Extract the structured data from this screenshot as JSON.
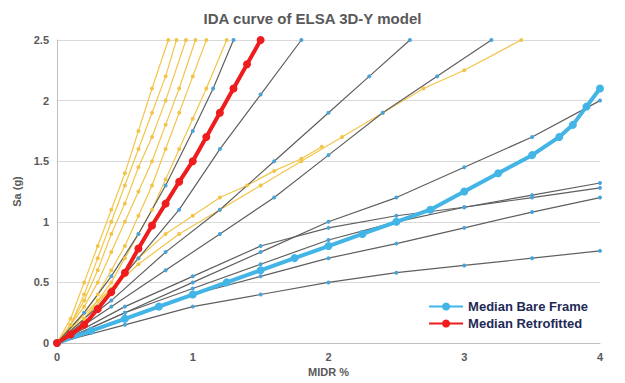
{
  "chart_data": {
    "type": "line",
    "title": "IDA curve of ELSA 3D-Y model",
    "x_label": "MIDR %",
    "y_label": "Sa (g)",
    "xlim": [
      0,
      4
    ],
    "xticks": [
      0,
      1,
      2,
      3,
      4
    ],
    "ylim": [
      0,
      2.5
    ],
    "yticks": [
      0,
      0.5,
      1,
      1.5,
      2,
      2.5
    ],
    "grid": true,
    "legend": "lower right",
    "series": [
      {
        "color": "#f2c54a",
        "marker": "circle",
        "line_style": "solid",
        "x": [
          0,
          0.1,
          0.2,
          0.3,
          0.4,
          0.5,
          0.6,
          0.7,
          0.82
        ],
        "values": [
          0,
          0.2,
          0.5,
          0.8,
          1.1,
          1.4,
          1.75,
          2.1,
          2.5
        ]
      },
      {
        "color": "#f2c54a",
        "marker": "circle",
        "line_style": "solid",
        "x": [
          0,
          0.1,
          0.2,
          0.3,
          0.4,
          0.5,
          0.6,
          0.7,
          0.8,
          0.88
        ],
        "values": [
          0,
          0.15,
          0.4,
          0.7,
          1.0,
          1.3,
          1.6,
          1.9,
          2.2,
          2.5
        ]
      },
      {
        "color": "#f2c54a",
        "marker": "circle",
        "line_style": "solid",
        "x": [
          0,
          0.1,
          0.2,
          0.3,
          0.4,
          0.5,
          0.6,
          0.7,
          0.8,
          0.95
        ],
        "values": [
          0,
          0.15,
          0.35,
          0.6,
          0.9,
          1.15,
          1.45,
          1.7,
          2.0,
          2.5
        ]
      },
      {
        "color": "#f2c54a",
        "marker": "circle",
        "line_style": "solid",
        "x": [
          0,
          0.2,
          0.3,
          0.4,
          0.5,
          0.6,
          0.7,
          0.8,
          0.9,
          1.02
        ],
        "values": [
          0,
          0.3,
          0.5,
          0.75,
          1.0,
          1.25,
          1.5,
          1.8,
          2.1,
          2.5
        ]
      },
      {
        "color": "#f2c54a",
        "marker": "circle",
        "line_style": "solid",
        "x": [
          0,
          0.2,
          0.3,
          0.4,
          0.5,
          0.6,
          0.7,
          0.8,
          0.9,
          1.0,
          1.1
        ],
        "values": [
          0,
          0.25,
          0.4,
          0.6,
          0.8,
          1.05,
          1.3,
          1.6,
          1.9,
          2.2,
          2.5
        ]
      },
      {
        "color": "#f2c54a",
        "marker": "circle",
        "line_style": "solid",
        "x": [
          0,
          0.2,
          0.4,
          0.5,
          0.6,
          0.7,
          0.8,
          0.9,
          1.0,
          1.1,
          1.25
        ],
        "values": [
          0,
          0.2,
          0.5,
          0.7,
          0.9,
          1.1,
          1.35,
          1.6,
          1.85,
          2.1,
          2.5
        ]
      },
      {
        "color": "#f2c54a",
        "marker": "circle",
        "line_style": "solid",
        "x": [
          0,
          0.2,
          0.4,
          0.6,
          0.8,
          1.0,
          1.2,
          1.4,
          1.6,
          1.8,
          1.95
        ],
        "values": [
          0,
          0.2,
          0.45,
          0.7,
          0.9,
          1.05,
          1.2,
          1.3,
          1.42,
          1.52,
          1.62
        ]
      },
      {
        "color": "#f2c54a",
        "marker": "circle",
        "line_style": "solid",
        "x": [
          0,
          0.3,
          0.6,
          0.9,
          1.2,
          1.5,
          1.8,
          2.1,
          2.4,
          2.7,
          3.0,
          3.42
        ],
        "values": [
          0,
          0.35,
          0.65,
          0.9,
          1.1,
          1.3,
          1.5,
          1.7,
          1.9,
          2.1,
          2.25,
          2.5
        ]
      },
      {
        "color": "#5f5f5f",
        "marker": "circle",
        "line_style": "solid",
        "x": [
          0,
          0.2,
          0.4,
          0.6,
          0.8,
          1.0,
          1.15,
          1.3
        ],
        "values": [
          0,
          0.25,
          0.55,
          0.9,
          1.3,
          1.75,
          2.1,
          2.5
        ]
      },
      {
        "color": "#5f5f5f",
        "marker": "circle",
        "line_style": "solid",
        "x": [
          0,
          0.3,
          0.6,
          0.9,
          1.2,
          1.5,
          1.8
        ],
        "values": [
          0,
          0.3,
          0.7,
          1.1,
          1.6,
          2.05,
          2.5
        ]
      },
      {
        "color": "#5f5f5f",
        "marker": "circle",
        "line_style": "solid",
        "x": [
          0,
          0.4,
          0.8,
          1.2,
          1.6,
          2.0,
          2.3,
          2.6
        ],
        "values": [
          0,
          0.35,
          0.75,
          1.1,
          1.5,
          1.9,
          2.2,
          2.5
        ]
      },
      {
        "color": "#5f5f5f",
        "marker": "circle",
        "line_style": "solid",
        "x": [
          0,
          0.4,
          0.8,
          1.2,
          1.6,
          2.0,
          2.4,
          2.8,
          3.2
        ],
        "values": [
          0,
          0.3,
          0.6,
          0.9,
          1.2,
          1.55,
          1.9,
          2.2,
          2.5
        ]
      },
      {
        "color": "#5f5f5f",
        "marker": "circle",
        "line_style": "solid",
        "x": [
          0,
          0.5,
          1.0,
          1.5,
          2.0,
          2.5,
          3.0,
          3.5,
          4.0
        ],
        "values": [
          0,
          0.25,
          0.5,
          0.75,
          1.0,
          1.2,
          1.45,
          1.7,
          2.0
        ]
      },
      {
        "color": "#5f5f5f",
        "marker": "circle",
        "line_style": "solid",
        "x": [
          0,
          0.5,
          1.0,
          1.5,
          2.0,
          2.5,
          3.0,
          3.5,
          4.0
        ],
        "values": [
          0,
          0.25,
          0.45,
          0.65,
          0.85,
          1.0,
          1.12,
          1.22,
          1.32
        ]
      },
      {
        "color": "#5f5f5f",
        "marker": "circle",
        "line_style": "solid",
        "x": [
          0,
          0.5,
          1.0,
          1.5,
          2.0,
          2.5,
          3.0,
          3.5,
          4.0
        ],
        "values": [
          0,
          0.3,
          0.55,
          0.8,
          0.95,
          1.05,
          1.12,
          1.2,
          1.28
        ]
      },
      {
        "color": "#5f5f5f",
        "marker": "circle",
        "line_style": "solid",
        "x": [
          0,
          0.5,
          1.0,
          1.5,
          2.0,
          2.5,
          3.0,
          3.5,
          4.0
        ],
        "values": [
          0,
          0.2,
          0.4,
          0.55,
          0.7,
          0.82,
          0.95,
          1.08,
          1.2
        ]
      },
      {
        "color": "#5f5f5f",
        "marker": "circle",
        "line_style": "solid",
        "x": [
          0,
          0.5,
          1.0,
          1.5,
          2.0,
          2.5,
          3.0,
          3.5,
          4.0
        ],
        "values": [
          0,
          0.15,
          0.3,
          0.4,
          0.5,
          0.58,
          0.64,
          0.7,
          0.76
        ]
      },
      {
        "name": "Median Bare Frame",
        "color": "#42b4e6",
        "marker": "circle",
        "line_style": "solid",
        "x": [
          0,
          0.25,
          0.5,
          0.75,
          1.0,
          1.25,
          1.5,
          1.75,
          2.0,
          2.25,
          2.5,
          2.75,
          3.0,
          3.25,
          3.5,
          3.7,
          3.8,
          3.9,
          4.0
        ],
        "values": [
          0,
          0.1,
          0.2,
          0.3,
          0.4,
          0.5,
          0.6,
          0.7,
          0.8,
          0.9,
          1.0,
          1.1,
          1.25,
          1.4,
          1.55,
          1.7,
          1.8,
          1.95,
          2.1
        ]
      },
      {
        "name": "Median Retrofitted",
        "color": "#ee1c1c",
        "marker": "circle",
        "line_style": "solid",
        "x": [
          0,
          0.1,
          0.2,
          0.3,
          0.4,
          0.5,
          0.6,
          0.7,
          0.8,
          0.9,
          1.0,
          1.1,
          1.2,
          1.3,
          1.4,
          1.5
        ],
        "values": [
          0,
          0.07,
          0.15,
          0.28,
          0.42,
          0.58,
          0.78,
          0.97,
          1.15,
          1.33,
          1.5,
          1.7,
          1.9,
          2.1,
          2.3,
          2.5
        ]
      }
    ]
  }
}
